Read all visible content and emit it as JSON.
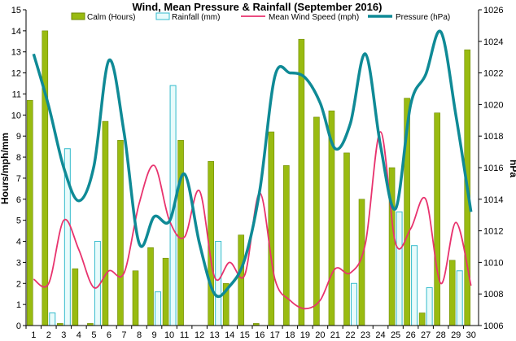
{
  "chart_data": {
    "type": "bar",
    "title": "Wind, Mean Pressure & Rainfall (September 2016)",
    "ylabel": "Hours/mph/mm",
    "y2label": "hPa",
    "categories": [
      "1",
      "2",
      "3",
      "4",
      "5",
      "6",
      "7",
      "8",
      "9",
      "10",
      "11",
      "12",
      "13",
      "14",
      "15",
      "16",
      "17",
      "18",
      "19",
      "20",
      "21",
      "22",
      "23",
      "24",
      "25",
      "26",
      "27",
      "28",
      "29",
      "30"
    ],
    "ylim": [
      0,
      15
    ],
    "yticks": [
      "0",
      "1",
      "2",
      "3",
      "4",
      "5",
      "6",
      "7",
      "8",
      "9",
      "10",
      "11",
      "12",
      "13",
      "14",
      "15"
    ],
    "y2lim": [
      1006,
      1026
    ],
    "y2ticks": [
      "1006",
      "1008",
      "1010",
      "1012",
      "1014",
      "1016",
      "1018",
      "1020",
      "1022",
      "1024",
      "1026"
    ],
    "legend_position": "top",
    "grid": false,
    "series": [
      {
        "name": "Calm (Hours)",
        "kind": "bar",
        "axis": "left",
        "color": "#99bb11",
        "values": [
          10.7,
          14.0,
          0.1,
          2.7,
          0.1,
          9.7,
          8.8,
          2.6,
          3.7,
          3.2,
          8.8,
          0.0,
          7.8,
          2.0,
          4.3,
          0.1,
          9.2,
          7.6,
          13.6,
          9.9,
          10.2,
          8.2,
          6.0,
          0.0,
          7.5,
          10.8,
          0.6,
          10.1,
          3.1,
          13.1
        ]
      },
      {
        "name": "Rainfall (mm)",
        "kind": "bar",
        "axis": "left",
        "color": "#e8fbfb",
        "stroke": "#33bbcc",
        "values": [
          0.0,
          0.6,
          8.4,
          0.0,
          4.0,
          0.0,
          0.0,
          0.0,
          1.6,
          11.4,
          0.0,
          0.0,
          4.0,
          0.0,
          0.0,
          0.0,
          0.0,
          0.0,
          0.0,
          0.0,
          0.0,
          2.0,
          0.0,
          0.0,
          5.4,
          3.8,
          1.8,
          0.0,
          2.6,
          0.0
        ]
      },
      {
        "name": "Mean Wind Speed (mph)",
        "kind": "line",
        "axis": "left",
        "color": "#e8336e",
        "values": [
          2.2,
          2.0,
          5.0,
          3.6,
          1.8,
          2.6,
          2.5,
          5.8,
          7.6,
          5.0,
          4.2,
          6.4,
          2.3,
          3.0,
          2.4,
          6.3,
          2.2,
          1.2,
          0.8,
          1.2,
          2.7,
          2.5,
          3.9,
          9.2,
          3.9,
          4.6,
          6.0,
          2.0,
          4.9,
          1.9
        ]
      },
      {
        "name": "Pressure (hPa)",
        "kind": "line",
        "axis": "right",
        "color": "#0f8a96",
        "values": [
          1023.2,
          1019.9,
          1016.0,
          1013.9,
          1016.1,
          1022.8,
          1018.2,
          1011.2,
          1012.9,
          1012.6,
          1015.6,
          1011.2,
          1008.0,
          1008.5,
          1010.2,
          1014.6,
          1021.8,
          1022.0,
          1021.7,
          1020.1,
          1017.2,
          1018.8,
          1023.2,
          1017.4,
          1013.4,
          1020.0,
          1021.9,
          1024.6,
          1019.3,
          1013.2
        ]
      }
    ]
  }
}
